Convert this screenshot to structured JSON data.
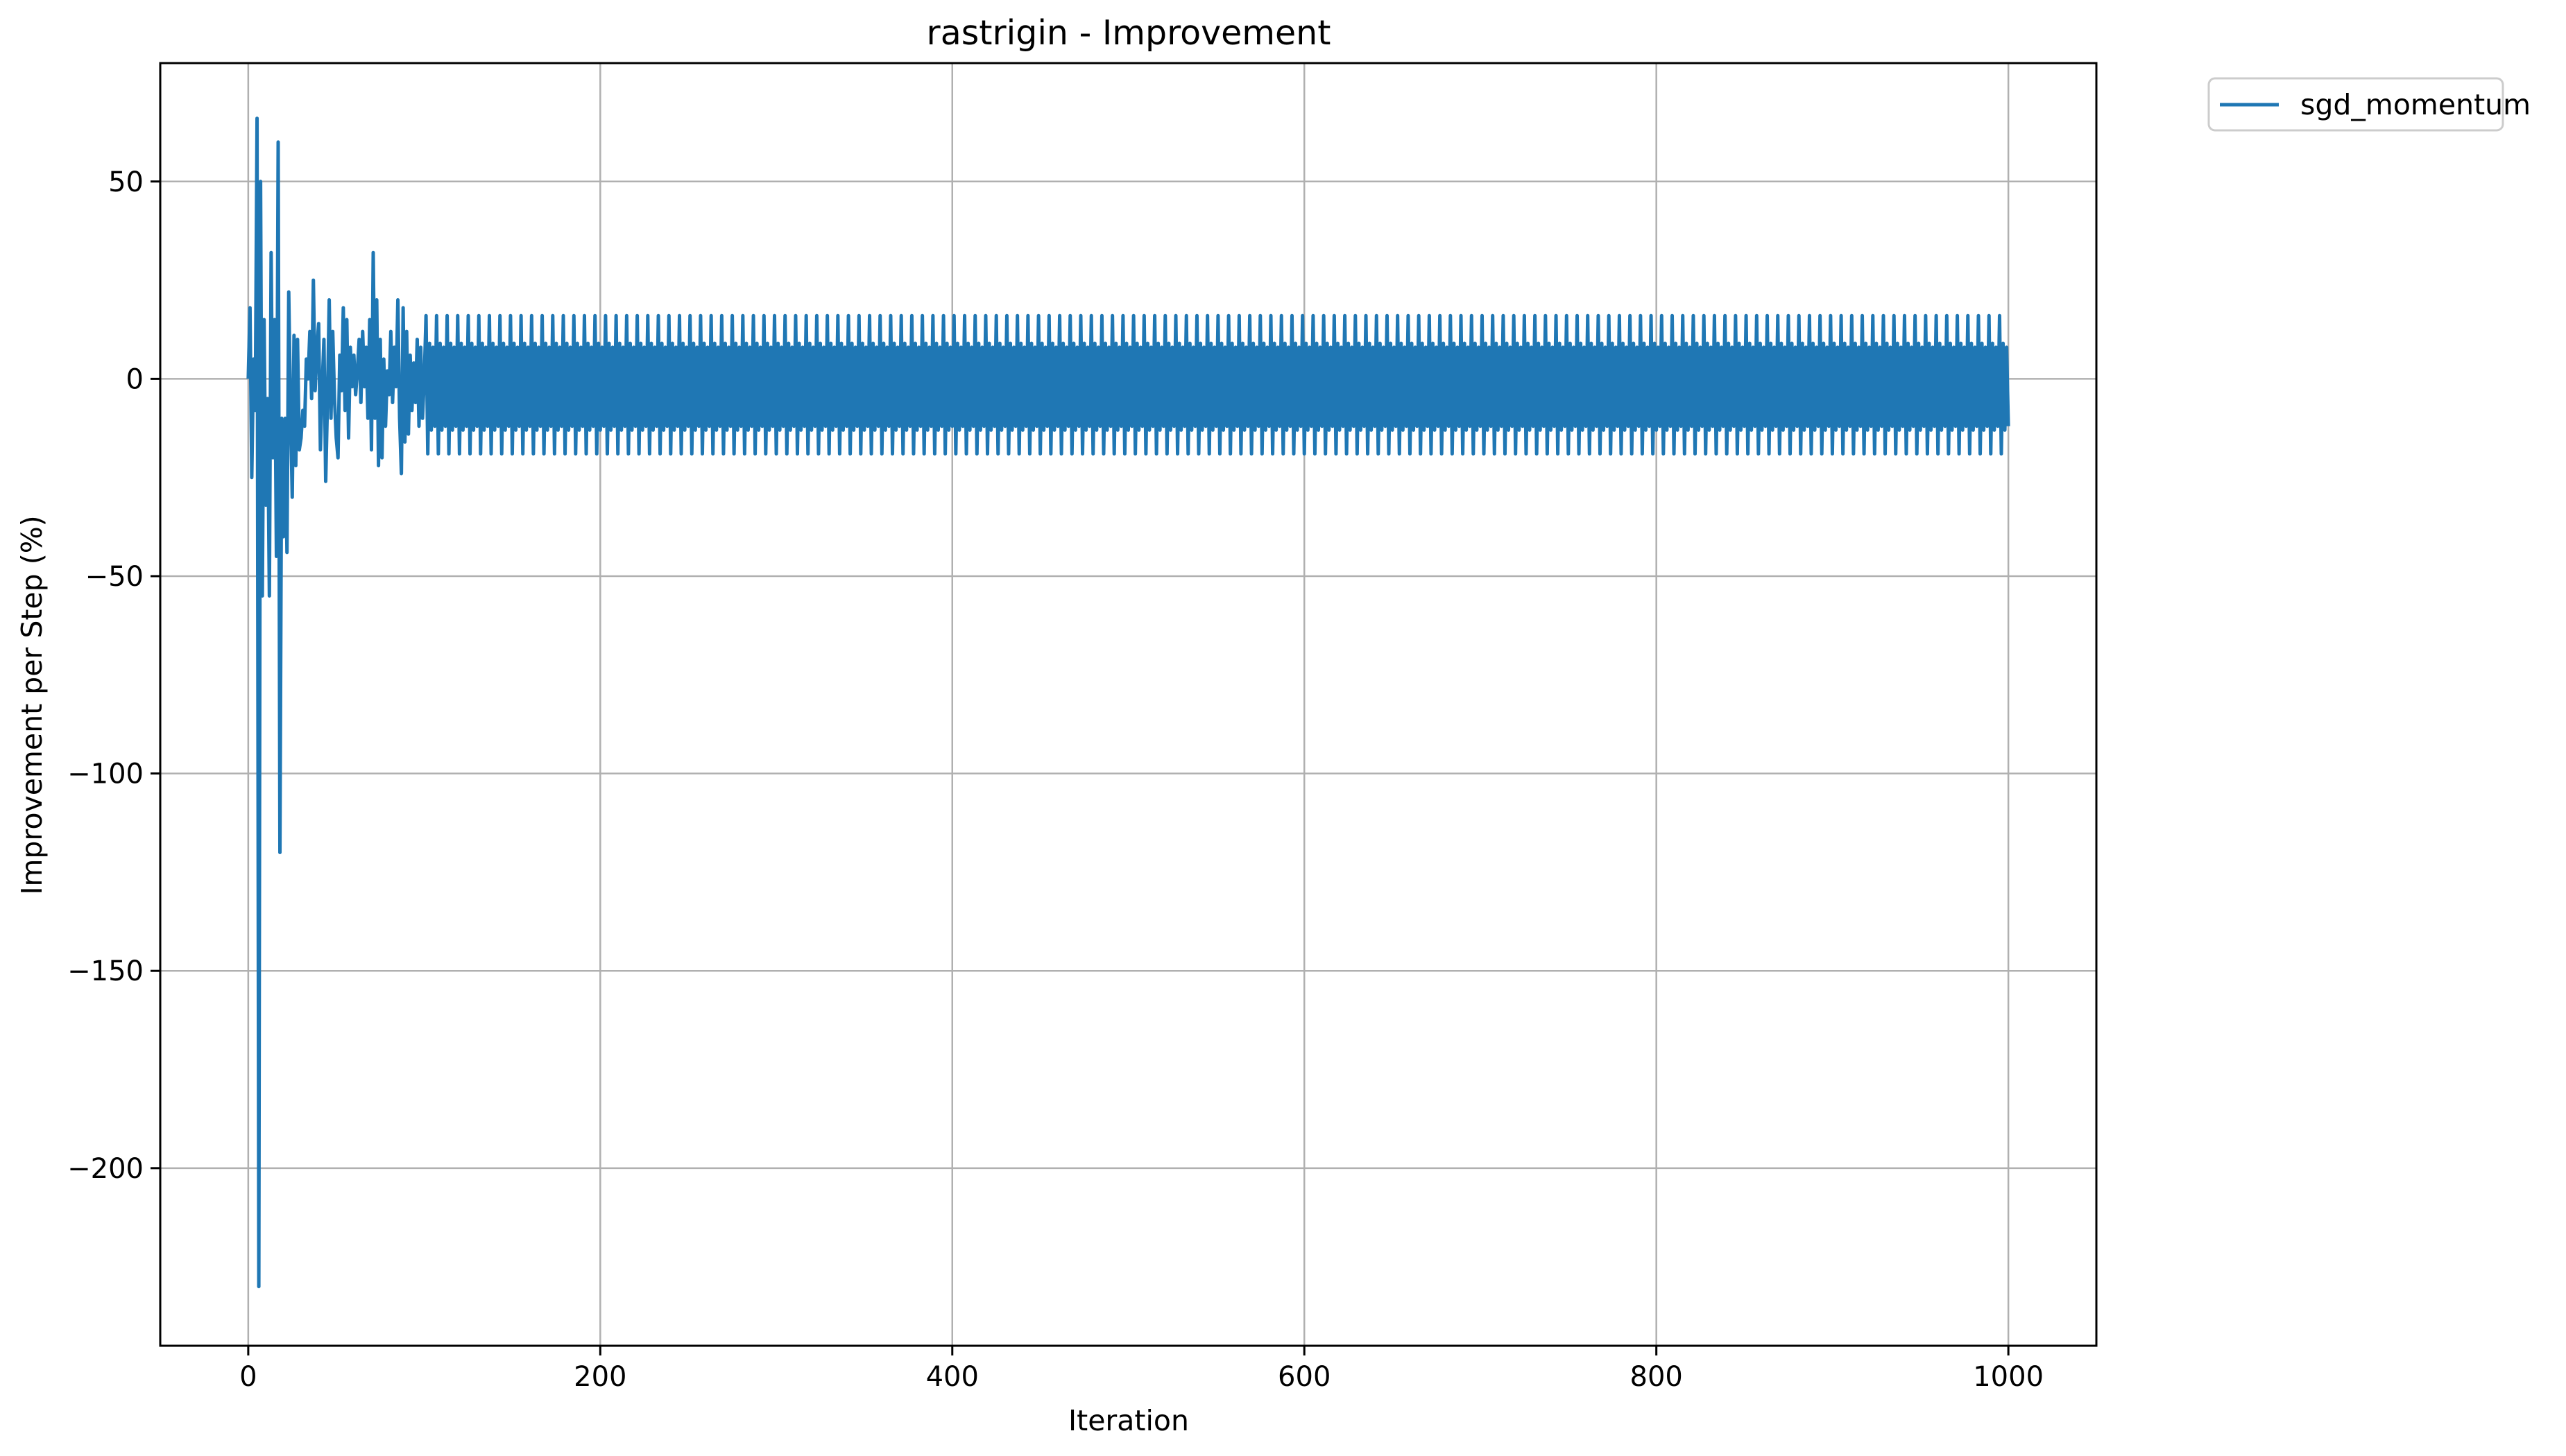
{
  "chart_data": {
    "type": "line",
    "title": "rastrigin - Improvement",
    "xlabel": "Iteration",
    "ylabel": "Improvement per Step (%)",
    "xlim": [
      -50,
      1050
    ],
    "ylim": [
      -245,
      80
    ],
    "xticks": [
      0,
      200,
      400,
      600,
      800,
      1000
    ],
    "xtick_labels": [
      "0",
      "200",
      "400",
      "600",
      "800",
      "1000"
    ],
    "yticks": [
      50,
      0,
      -50,
      -100,
      -150,
      -200
    ],
    "ytick_labels": [
      "50",
      "0",
      "−50",
      "−100",
      "−150",
      "−200"
    ],
    "grid": true,
    "legend_position": "outside-top-right",
    "series_color": "#1f77b4",
    "series": [
      {
        "name": "sgd_momentum",
        "color": "#1f77b4",
        "transient": {
          "x": [
            0,
            1,
            2,
            3,
            4,
            5,
            6,
            7,
            8,
            9,
            10,
            11,
            12,
            13,
            14,
            15,
            16,
            17,
            18,
            19,
            20,
            21,
            22,
            23,
            24,
            25,
            26,
            27,
            28,
            29,
            30,
            31,
            32,
            33,
            34,
            35,
            36,
            37,
            38,
            39,
            40,
            41,
            42,
            43,
            44,
            45,
            46,
            47,
            48,
            49,
            50,
            51,
            52,
            53,
            54,
            55,
            56,
            57,
            58,
            59,
            60,
            61,
            62,
            63,
            64,
            65,
            66,
            67,
            68,
            69,
            70,
            71,
            72,
            73,
            74,
            75,
            76,
            77,
            78,
            79,
            80,
            81,
            82,
            83,
            84,
            85,
            86,
            87,
            88,
            89,
            90,
            91,
            92,
            93,
            94,
            95,
            96,
            97,
            98,
            99,
            100
          ],
          "y": [
            0,
            18,
            -25,
            5,
            -8,
            66,
            -230,
            50,
            -55,
            15,
            -32,
            -5,
            -55,
            32,
            -20,
            15,
            -45,
            60,
            -120,
            -10,
            -40,
            -10,
            -44,
            22,
            -8,
            -30,
            11,
            -22,
            10,
            -18,
            -15,
            -8,
            -12,
            5,
            0,
            12,
            -5,
            25,
            -3,
            8,
            14,
            -18,
            -2,
            10,
            -26,
            -6,
            20,
            -10,
            12,
            -5,
            -15,
            -20,
            6,
            -3,
            18,
            -8,
            15,
            -15,
            8,
            -2,
            6,
            -4,
            2,
            10,
            -6,
            12,
            -2,
            8,
            -10,
            15,
            -18,
            32,
            -10,
            20,
            -22,
            10,
            -20,
            5,
            -12,
            2,
            -4,
            12,
            -6,
            8,
            -2,
            20,
            -10,
            -24,
            18,
            -16,
            12,
            -14,
            6,
            -8,
            4,
            -6,
            10,
            -12,
            8,
            -10,
            0
          ]
        },
        "periodic": {
          "x_start": 101,
          "x_end": 999,
          "period": 6,
          "cycle_values": [
            16,
            -19,
            9,
            -13,
            8,
            -12
          ]
        },
        "end_value": -12
      }
    ]
  }
}
